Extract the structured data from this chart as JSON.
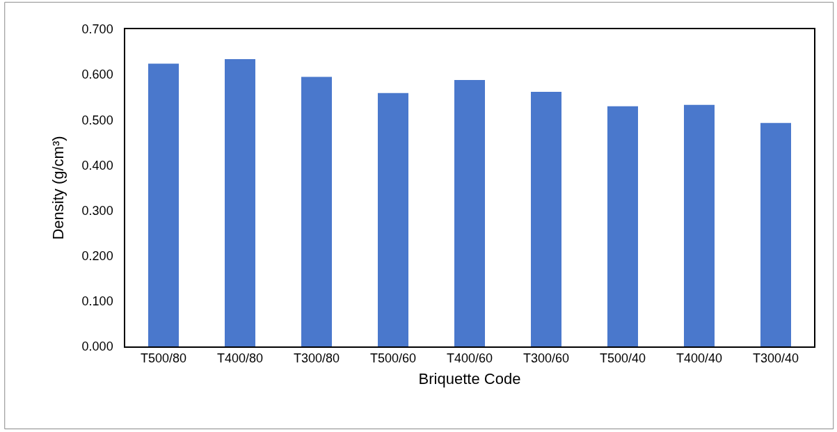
{
  "chart_data": {
    "type": "bar",
    "xlabel": "Briquette Code",
    "ylabel": "Density (g/cm³)",
    "categories": [
      "T500/80",
      "T400/80",
      "T300/80",
      "T500/60",
      "T400/60",
      "T300/60",
      "T500/40",
      "T400/40",
      "T300/40"
    ],
    "values": [
      0.624,
      0.634,
      0.595,
      0.559,
      0.588,
      0.562,
      0.53,
      0.533,
      0.493
    ],
    "color": "#4a78cc",
    "ylim": [
      0,
      0.7
    ],
    "yticks": [
      {
        "value": 0,
        "label": "0.000"
      },
      {
        "value": 0.1,
        "label": "0.100"
      },
      {
        "value": 0.2,
        "label": "0.200"
      },
      {
        "value": 0.3,
        "label": "0.300"
      },
      {
        "value": 0.4,
        "label": "0.400"
      },
      {
        "value": 0.5,
        "label": "0.500"
      },
      {
        "value": 0.6,
        "label": "0.600"
      },
      {
        "value": 0.7,
        "label": "0.700"
      }
    ],
    "grid": false
  }
}
